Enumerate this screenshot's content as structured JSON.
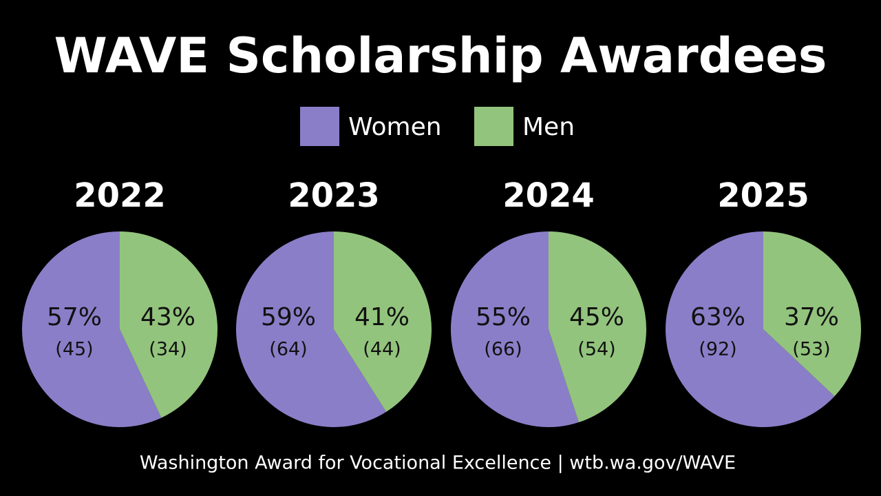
{
  "title": "WAVE Scholarship Awardees",
  "footer": "Washington Award for Vocational Excellence | wtb.wa.gov/WAVE",
  "chart_data": [
    {
      "type": "pie",
      "title": "2022",
      "categories": [
        "Women",
        "Men"
      ],
      "colors": [
        "#8b7ec8",
        "#93c47d"
      ],
      "values": [
        57,
        43
      ],
      "value_labels": [
        "57%",
        "43%"
      ],
      "counts": [
        45,
        34
      ],
      "count_labels": [
        "(45)",
        "(34)"
      ]
    },
    {
      "type": "pie",
      "title": "2023",
      "categories": [
        "Women",
        "Men"
      ],
      "colors": [
        "#8b7ec8",
        "#93c47d"
      ],
      "values": [
        59,
        41
      ],
      "value_labels": [
        "59%",
        "41%"
      ],
      "counts": [
        64,
        44
      ],
      "count_labels": [
        "(64)",
        "(44)"
      ]
    },
    {
      "type": "pie",
      "title": "2024",
      "categories": [
        "Women",
        "Men"
      ],
      "colors": [
        "#8b7ec8",
        "#93c47d"
      ],
      "values": [
        55,
        45
      ],
      "value_labels": [
        "55%",
        "45%"
      ],
      "counts": [
        66,
        54
      ],
      "count_labels": [
        "(66)",
        "(54)"
      ]
    },
    {
      "type": "pie",
      "title": "2025",
      "categories": [
        "Women",
        "Men"
      ],
      "colors": [
        "#8b7ec8",
        "#93c47d"
      ],
      "values": [
        63,
        37
      ],
      "value_labels": [
        "63%",
        "37%"
      ],
      "counts": [
        92,
        53
      ],
      "count_labels": [
        "(92)",
        "(53)"
      ]
    }
  ]
}
